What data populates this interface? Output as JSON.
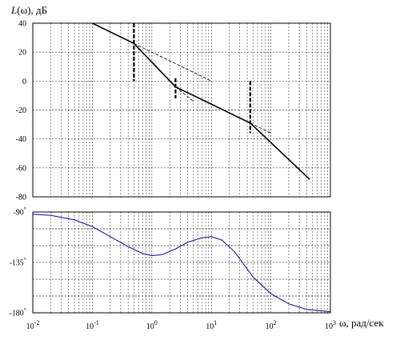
{
  "chart_data": [
    {
      "type": "line",
      "ylabel_prefix": "L",
      "ylabel_rest": "(ω), дБ",
      "xscale": "log",
      "xlim": [
        0.01,
        1000
      ],
      "ylim": [
        -80,
        40
      ],
      "yticks": [
        "40",
        "20",
        "0",
        "-20",
        "-40",
        "-60",
        "-80"
      ],
      "grid": true,
      "series": [
        {
          "role": "asymptotic-lafc",
          "style": "solid-black",
          "x": [
            0.1,
            0.5,
            2.5,
            45,
            450
          ],
          "y": [
            40,
            26,
            -4,
            -29,
            -68
          ]
        },
        {
          "role": "asymptote-extension-1",
          "style": "dashed-thin",
          "x": [
            0.5,
            10
          ],
          "y": [
            26,
            0
          ]
        },
        {
          "role": "asymptote-extension-2",
          "style": "dashed-thin",
          "x": [
            2.5,
            5
          ],
          "y": [
            -4,
            -14
          ]
        },
        {
          "role": "asymptote-extension-3",
          "style": "dashed-thin",
          "x": [
            45,
            100
          ],
          "y": [
            -29,
            -36
          ]
        }
      ],
      "corner_markers": [
        {
          "x": 0.5,
          "y_from": 0,
          "y_to": 40
        },
        {
          "x": 2.5,
          "y_from": -12,
          "y_to": 2
        },
        {
          "x": 45,
          "y_from": -36,
          "y_to": 0
        }
      ]
    },
    {
      "type": "line",
      "xscale": "log",
      "xlim": [
        0.01,
        1000
      ],
      "ylim": [
        -180,
        -90
      ],
      "ytick_values": [
        -90,
        -135,
        -180
      ],
      "grid": true,
      "xlabel": "ω, рад/сек",
      "x_tick_labels": [
        {
          "base": "10",
          "exp": "-2",
          "value": 0.01
        },
        {
          "base": "10",
          "exp": "-1",
          "value": 0.1
        },
        {
          "base": "10",
          "exp": "0",
          "value": 1
        },
        {
          "base": "10",
          "exp": "1",
          "value": 10
        },
        {
          "base": "10",
          "exp": "2",
          "value": 100
        },
        {
          "base": "10",
          "exp": "3",
          "value": 1000
        }
      ],
      "series": [
        {
          "role": "phase",
          "color": "#1a1aa6",
          "x": [
            0.01,
            0.02,
            0.05,
            0.1,
            0.2,
            0.4,
            0.7,
            1,
            1.5,
            2.5,
            4,
            7,
            10,
            15,
            25,
            50,
            100,
            200,
            400,
            1000
          ],
          "y": [
            -92,
            -93,
            -97,
            -103,
            -112,
            -121,
            -127,
            -129,
            -128,
            -123,
            -117,
            -113,
            -112,
            -115,
            -126,
            -148,
            -163,
            -172,
            -177,
            -179
          ]
        }
      ]
    }
  ]
}
